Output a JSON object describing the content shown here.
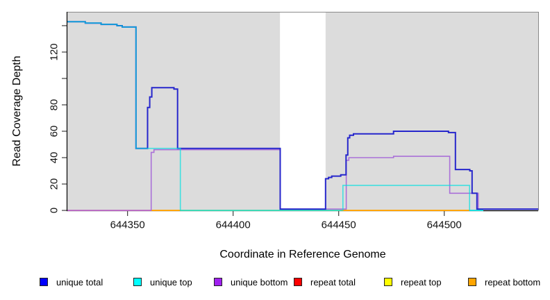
{
  "chart_data": {
    "type": "line",
    "subtype": "step-coverage",
    "title": "",
    "xlabel": "Coordinate in Reference Genome",
    "ylabel": "Read Coverage Depth",
    "xlim": [
      644321.5,
      644544.5
    ],
    "ylim": [
      0,
      150.5
    ],
    "x_ticks": [
      644350,
      644400,
      644450,
      644500
    ],
    "y_ticks_all": [
      0,
      20,
      40,
      60,
      80,
      100,
      120,
      140
    ],
    "y_ticks_labeled": [
      0,
      20,
      40,
      60,
      80,
      120
    ],
    "grid": false,
    "plot_bg_color": "#dcdcdc",
    "gap_region": {
      "x_start": 644422.2,
      "x_end": 644443.8,
      "color": "#ffffff"
    },
    "axis_color": "#000000",
    "border_color": "#8a8a8a",
    "tick_color": "#3d3d3d",
    "series": [
      {
        "name": "unique total",
        "color": "#2626cc",
        "width": 2,
        "draw": true,
        "steps": [
          [
            644321.5,
            143
          ],
          [
            644330,
            142
          ],
          [
            644337.5,
            141
          ],
          [
            644345,
            140
          ],
          [
            644347.5,
            139
          ],
          [
            644354,
            47
          ],
          [
            644359.5,
            78
          ],
          [
            644360.5,
            86
          ],
          [
            644361.5,
            93
          ],
          [
            644372,
            92
          ],
          [
            644373.7,
            47
          ],
          [
            644422.3,
            1
          ],
          [
            644443.8,
            24
          ],
          [
            644445.2,
            25
          ],
          [
            644446.7,
            26
          ],
          [
            644451,
            27
          ],
          [
            644453.5,
            42
          ],
          [
            644454.3,
            55
          ],
          [
            644455.2,
            57
          ],
          [
            644457,
            58
          ],
          [
            644476,
            60
          ],
          [
            644502,
            59
          ],
          [
            644505.3,
            31
          ],
          [
            644512.1,
            30
          ],
          [
            644513.2,
            13
          ],
          [
            644515.5,
            1
          ],
          [
            644544.5,
            1
          ]
        ]
      },
      {
        "name": "unique top",
        "color": "#00e0e0",
        "width": 1.6,
        "opacity": 0.7,
        "draw": true,
        "steps": [
          [
            644321.5,
            143
          ],
          [
            644330,
            142
          ],
          [
            644337.5,
            141
          ],
          [
            644345,
            140
          ],
          [
            644347.5,
            139
          ],
          [
            644354,
            47
          ],
          [
            644375,
            0
          ],
          [
            644452,
            19
          ],
          [
            644512,
            0
          ],
          [
            644518.5,
            0
          ]
        ]
      },
      {
        "name": "unique bottom",
        "color": "#aa70d8",
        "width": 1.6,
        "draw": true,
        "steps": [
          [
            644321.5,
            0
          ],
          [
            644361.2,
            44
          ],
          [
            644362.5,
            46
          ],
          [
            644422.3,
            1
          ],
          [
            644453.6,
            38
          ],
          [
            644454.8,
            40
          ],
          [
            644476,
            41
          ],
          [
            644502.6,
            13
          ],
          [
            644516.1,
            1
          ],
          [
            644544.5,
            1
          ]
        ]
      },
      {
        "name": "repeat total",
        "color": "#ff0000",
        "width": 1.6,
        "draw": false,
        "steps": [
          [
            644321.5,
            0
          ],
          [
            644544.5,
            0
          ]
        ]
      },
      {
        "name": "repeat top",
        "color": "#ffff00",
        "width": 1.6,
        "draw": false,
        "steps": [
          [
            644321.5,
            0
          ],
          [
            644544.5,
            0
          ]
        ]
      },
      {
        "name": "repeat bottom",
        "color": "#ffa500",
        "width": 1.6,
        "draw": false,
        "steps": [
          [
            644321.5,
            0
          ],
          [
            644544.5,
            0
          ]
        ]
      }
    ],
    "baseline_segments": [
      {
        "color": "#ec6a80",
        "x_start": 644321.5,
        "x_end": 644361.2
      },
      {
        "color": "#ffa500",
        "x_start": 644361.2,
        "x_end": 644375
      },
      {
        "color": "#86d086",
        "x_start": 644375,
        "x_end": 644451.3
      },
      {
        "color": "#ffa500",
        "x_start": 644451.3,
        "x_end": 644512
      },
      {
        "color": "#3fdede",
        "x_start": 644512,
        "x_end": 644518.5
      }
    ],
    "legend": {
      "position": "bottom",
      "items": [
        {
          "label": "unique total",
          "color": "#0000ff"
        },
        {
          "label": "unique top",
          "color": "#00ffff"
        },
        {
          "label": "unique bottom",
          "color": "#a020f0"
        },
        {
          "label": "repeat total",
          "color": "#ff0000"
        },
        {
          "label": "repeat top",
          "color": "#ffff00"
        },
        {
          "label": "repeat bottom",
          "color": "#ffa500"
        }
      ]
    }
  }
}
